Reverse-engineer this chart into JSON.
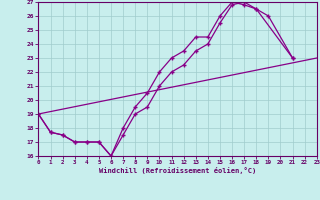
{
  "bg_color": "#c8eeed",
  "grid_color": "#a0cccc",
  "line_color": "#880088",
  "xlabel": "Windchill (Refroidissement éolien,°C)",
  "xlim": [
    0,
    23
  ],
  "ylim": [
    16,
    27
  ],
  "xticks": [
    0,
    1,
    2,
    3,
    4,
    5,
    6,
    7,
    8,
    9,
    10,
    11,
    12,
    13,
    14,
    15,
    16,
    17,
    18,
    19,
    20,
    21,
    22,
    23
  ],
  "yticks": [
    16,
    17,
    18,
    19,
    20,
    21,
    22,
    23,
    24,
    25,
    26,
    27
  ],
  "curve1_x": [
    0,
    1,
    2,
    3,
    4,
    5,
    6,
    7,
    8,
    9,
    10,
    11,
    12,
    13,
    14,
    15,
    16,
    17,
    18,
    21
  ],
  "curve1_y": [
    19.0,
    17.7,
    17.5,
    17.0,
    17.0,
    17.0,
    16.0,
    18.0,
    19.5,
    20.5,
    22.0,
    23.0,
    23.5,
    24.5,
    24.5,
    26.0,
    27.0,
    26.8,
    26.5,
    23.0
  ],
  "curve2_x": [
    0,
    1,
    2,
    3,
    4,
    5,
    6,
    7,
    8,
    9,
    10,
    11,
    12,
    13,
    14,
    15,
    16,
    17,
    18,
    19,
    21
  ],
  "curve2_y": [
    19.0,
    17.7,
    17.5,
    17.0,
    17.0,
    17.0,
    16.0,
    17.5,
    19.0,
    19.5,
    21.0,
    22.0,
    22.5,
    23.5,
    24.0,
    25.5,
    26.8,
    27.0,
    26.5,
    26.0,
    23.0
  ],
  "curve3_x": [
    0,
    23
  ],
  "curve3_y": [
    19.0,
    23.0
  ]
}
